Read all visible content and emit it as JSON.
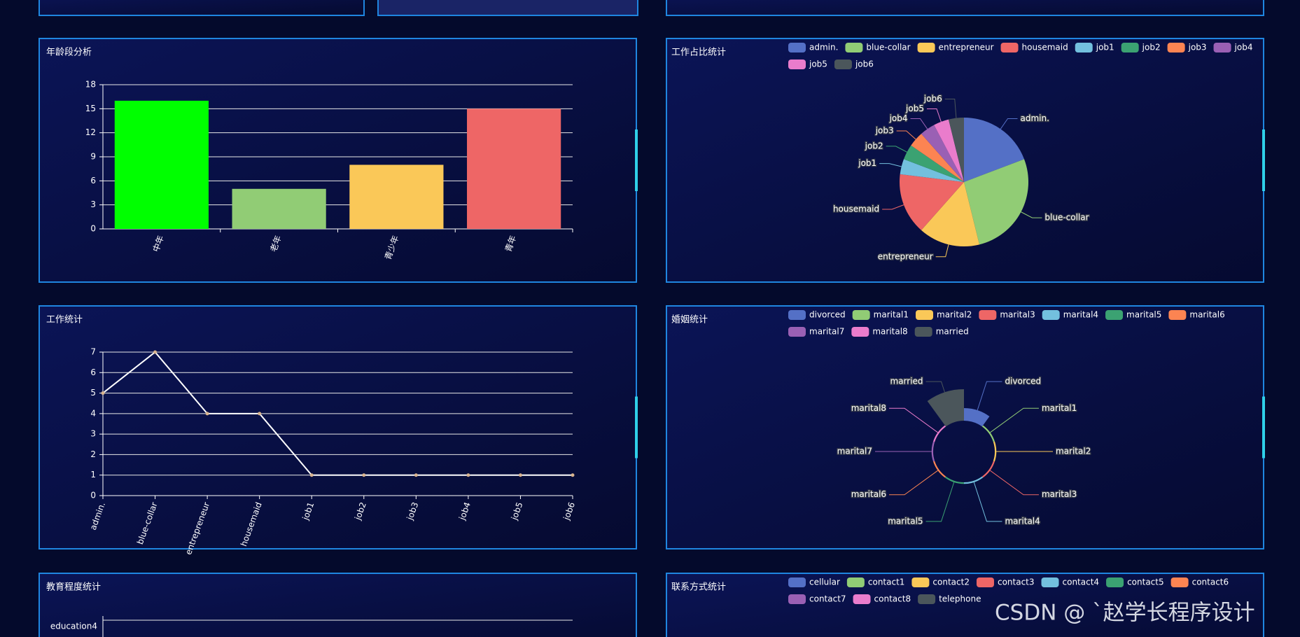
{
  "watermark": "CSDN @ ˋ赵学长程序设计",
  "chart_data": [
    {
      "type": "bar",
      "title": "年龄段分析",
      "categories": [
        "中年",
        "老年",
        "青少年",
        "青年"
      ],
      "values": [
        16,
        5,
        8,
        15
      ],
      "colors": [
        "#00ff00",
        "#91cc75",
        "#fac858",
        "#ee6666"
      ],
      "ylim": [
        0,
        18
      ],
      "yticks": [
        0,
        3,
        6,
        9,
        12,
        15,
        18
      ],
      "grid": true
    },
    {
      "type": "pie",
      "title": "工作占比统计",
      "categories": [
        "admin.",
        "blue-collar",
        "entrepreneur",
        "housemaid",
        "job1",
        "job2",
        "job3",
        "job4",
        "job5",
        "job6"
      ],
      "values": [
        5,
        7,
        4,
        4,
        1,
        1,
        1,
        1,
        1,
        1
      ],
      "colors": [
        "#5470c6",
        "#91cc75",
        "#fac858",
        "#ee6666",
        "#73c0de",
        "#3ba272",
        "#fc8452",
        "#9a60b4",
        "#ea7ccc",
        "#4b565b"
      ]
    },
    {
      "type": "line",
      "title": "工作统计",
      "categories": [
        "admin.",
        "blue-collar",
        "entrepreneur",
        "housemaid",
        "job1",
        "job2",
        "job3",
        "job4",
        "job5",
        "job6"
      ],
      "values": [
        5,
        7,
        4,
        4,
        1,
        1,
        1,
        1,
        1,
        1
      ],
      "ylim": [
        0,
        7
      ],
      "yticks": [
        0,
        1,
        2,
        3,
        4,
        5,
        6,
        7
      ],
      "color": "#ffffff",
      "marker_color": "#d9b48f",
      "grid": true
    },
    {
      "type": "rose",
      "title": "婚姻统计",
      "categories": [
        "divorced",
        "marital1",
        "marital2",
        "marital3",
        "marital4",
        "marital5",
        "marital6",
        "marital7",
        "marital8",
        "married"
      ],
      "values": [
        8,
        1,
        1,
        1,
        1,
        1,
        1,
        1,
        1,
        20
      ],
      "colors": [
        "#5470c6",
        "#91cc75",
        "#fac858",
        "#ee6666",
        "#73c0de",
        "#3ba272",
        "#fc8452",
        "#9a60b4",
        "#ea7ccc",
        "#4b565b"
      ]
    },
    {
      "type": "pie",
      "title": "联系方式统计",
      "categories": [
        "cellular",
        "contact1",
        "contact2",
        "contact3",
        "contact4",
        "contact5",
        "contact6",
        "contact7",
        "contact8",
        "telephone"
      ],
      "colors": [
        "#5470c6",
        "#91cc75",
        "#fac858",
        "#ee6666",
        "#73c0de",
        "#3ba272",
        "#fc8452",
        "#9a60b4",
        "#ea7ccc",
        "#4b565b"
      ]
    },
    {
      "type": "bar",
      "title": "教育程度统计",
      "orientation": "horizontal",
      "categories": [
        "education4"
      ]
    }
  ]
}
